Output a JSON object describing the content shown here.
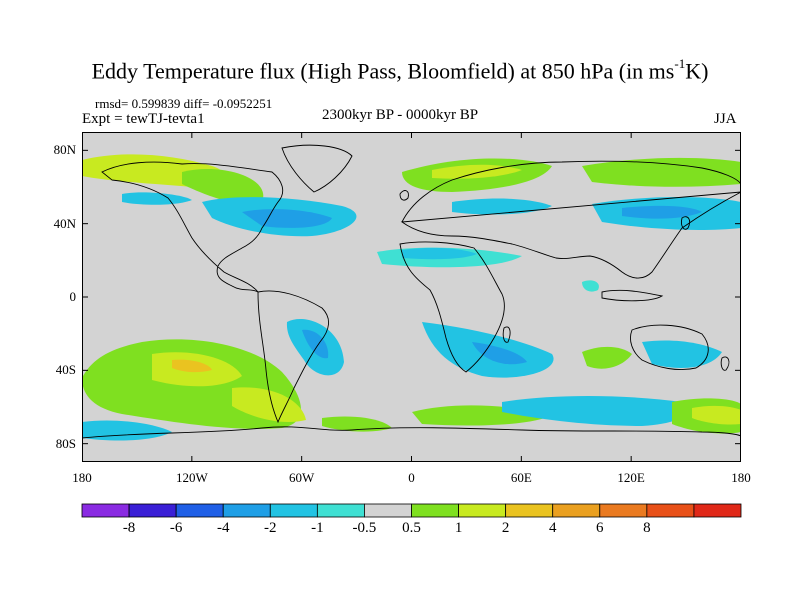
{
  "title": {
    "main": "Eddy Temperature flux (High Pass, Bloomfield) at 850 hPa (in ms",
    "sup": "-1",
    "tail": "K)"
  },
  "stats": "rmsd= 0.599839 diff= -0.0952251",
  "expt": "Expt = tewTJ-tevta1",
  "subtitle": "2300kyr BP - 0000kyr BP",
  "season": "JJA",
  "lat_ticks": [
    {
      "value": 80,
      "label": "80N"
    },
    {
      "value": 40,
      "label": "40N"
    },
    {
      "value": 0,
      "label": "0"
    },
    {
      "value": -40,
      "label": "40S"
    },
    {
      "value": -80,
      "label": "80S"
    }
  ],
  "lon_ticks": [
    {
      "value": -180,
      "label": "180"
    },
    {
      "value": -120,
      "label": "120W"
    },
    {
      "value": -60,
      "label": "60W"
    },
    {
      "value": 0,
      "label": "0"
    },
    {
      "value": 60,
      "label": "60E"
    },
    {
      "value": 120,
      "label": "120E"
    },
    {
      "value": 180,
      "label": "180"
    }
  ],
  "colorbar": {
    "colors": [
      "#8a2be2",
      "#3a1fd6",
      "#1f5fe6",
      "#1f9fe6",
      "#22c3e3",
      "#3fe0d3",
      "#d3d3d3",
      "#7fe020",
      "#c8ea20",
      "#eac320",
      "#eaa020",
      "#ea7a20",
      "#e85018",
      "#e02818"
    ],
    "labels": [
      "-8",
      "-6",
      "-4",
      "-2",
      "-1",
      "-0.5",
      "0.5",
      "1",
      "2",
      "4",
      "6",
      "8"
    ]
  },
  "colors": {
    "background": "#d3d3d3",
    "neg_weak": "#3fe0d3",
    "neg_mid": "#22c3e3",
    "neg_strong": "#1f9fe6",
    "pos_weak": "#7fe020",
    "pos_mid": "#c8ea20",
    "pos_strong": "#eac320"
  }
}
